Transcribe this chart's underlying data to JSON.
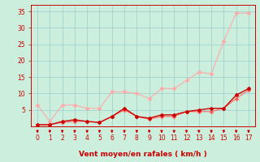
{
  "x": [
    0,
    1,
    2,
    3,
    4,
    5,
    6,
    7,
    8,
    9,
    10,
    11,
    12,
    13,
    14,
    15,
    16,
    17
  ],
  "series": [
    {
      "name": "max_rafales_light",
      "y": [
        6.5,
        1.5,
        6.5,
        6.5,
        5.5,
        5.5,
        10.5,
        10.5,
        10.0,
        8.5,
        11.5,
        11.5,
        14.0,
        16.5,
        16.0,
        26.0,
        34.5,
        34.5
      ],
      "color": "#ffaaaa",
      "marker": "D",
      "markersize": 2.0,
      "linewidth": 0.8
    },
    {
      "name": "moyen_line",
      "y": [
        0.5,
        0.5,
        1.2,
        1.5,
        1.5,
        1.2,
        3.0,
        5.0,
        3.0,
        2.2,
        3.0,
        3.0,
        4.5,
        4.5,
        4.5,
        5.5,
        8.5,
        11.0
      ],
      "color": "#ff6666",
      "marker": "D",
      "markersize": 2.0,
      "linewidth": 0.8
    },
    {
      "name": "rafales_line",
      "y": [
        0.5,
        0.5,
        1.5,
        2.0,
        1.5,
        1.2,
        3.0,
        5.5,
        3.0,
        2.5,
        3.5,
        3.5,
        4.5,
        5.0,
        5.5,
        5.5,
        9.5,
        11.5
      ],
      "color": "#cc0000",
      "marker": "D",
      "markersize": 2.0,
      "linewidth": 1.0
    }
  ],
  "xlim": [
    -0.5,
    17.5
  ],
  "ylim": [
    0,
    37
  ],
  "yticks": [
    5,
    10,
    15,
    20,
    25,
    30,
    35
  ],
  "xticks": [
    0,
    1,
    2,
    3,
    4,
    5,
    6,
    7,
    8,
    9,
    10,
    11,
    12,
    13,
    14,
    15,
    16,
    17
  ],
  "xlabel": "Vent moyen/en rafales ( km/h )",
  "background_color": "#cceedd",
  "grid_color": "#99cccc",
  "tick_color": "#cc0000",
  "label_color": "#cc0000",
  "axis_color": "#cc0000",
  "arrow_color": "#cc0000"
}
